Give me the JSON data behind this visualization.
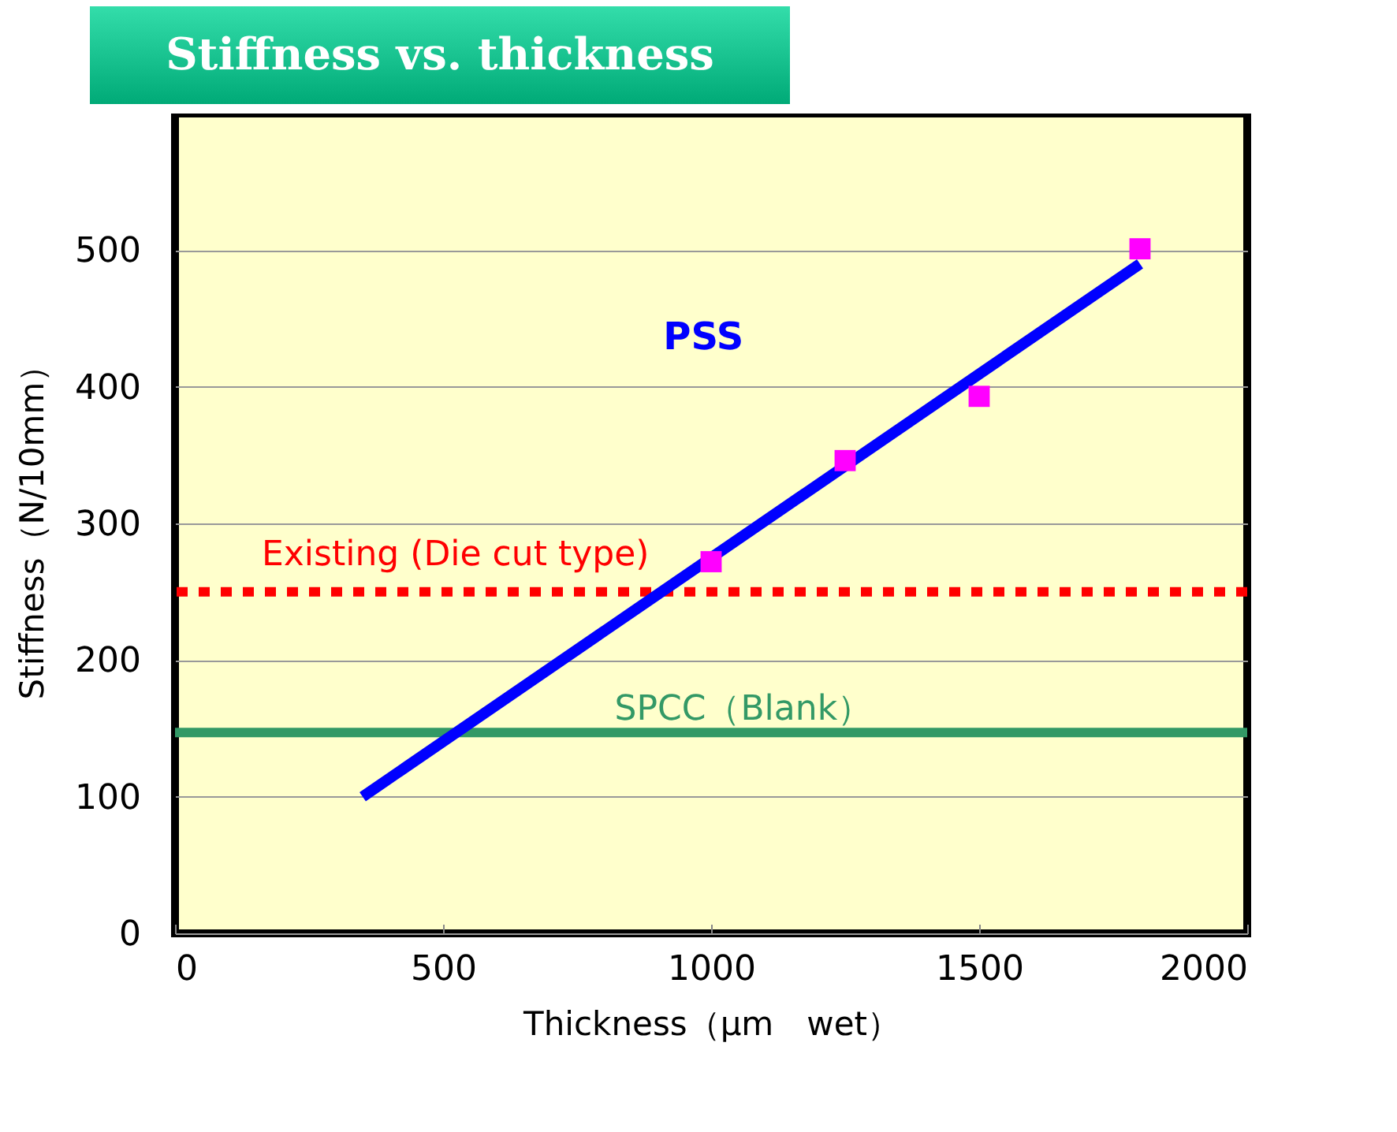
{
  "chart_data": {
    "type": "scatter",
    "title": "Stiffness vs. thickness",
    "xlabel": "Thickness（μm　wet）",
    "ylabel": "Stiffness（N/10mm）",
    "xlim": [
      0,
      2000
    ],
    "xticks": [
      0,
      500,
      1000,
      1500,
      2000
    ],
    "ylim": [
      0,
      600
    ],
    "yticks": [
      0,
      100,
      200,
      300,
      400,
      500
    ],
    "grid": "y",
    "series": [
      {
        "marker": "square",
        "color": "#ff00ff",
        "x": [
          1000,
          1250,
          1500,
          1800
        ],
        "values": [
          272,
          346,
          393,
          501
        ]
      },
      {
        "type": "line",
        "name": "PSS",
        "color": "#0000ff",
        "x": [
          350,
          1800
        ],
        "values": [
          100,
          490
        ]
      }
    ],
    "ref_lines": [
      {
        "axis": "y",
        "value": 250,
        "label": "Existing (Die cut type)",
        "color": "#ff0000",
        "line_style": "dotted"
      },
      {
        "axis": "y",
        "value": 147,
        "label": "SPCC（Blank）",
        "color": "#339966",
        "line_style": "solid"
      }
    ]
  }
}
